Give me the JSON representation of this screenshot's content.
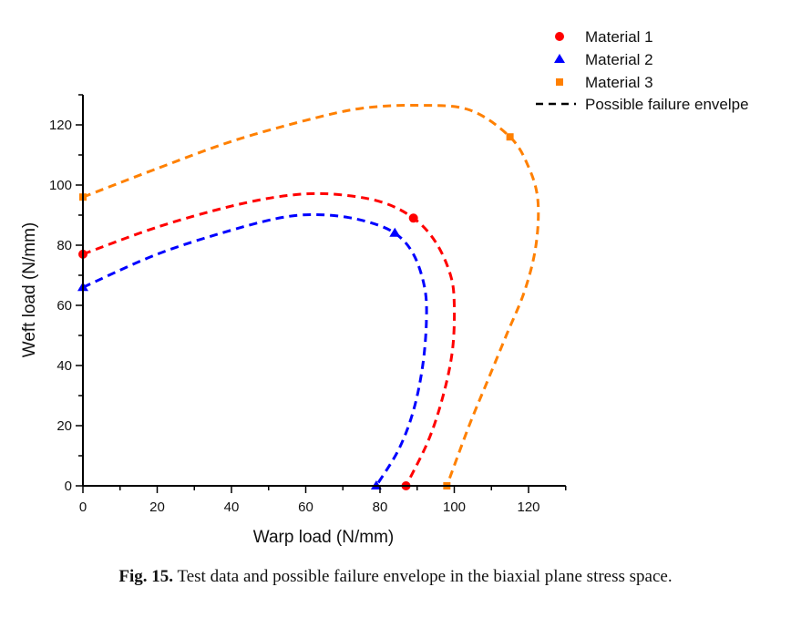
{
  "chart_data": {
    "type": "scatter",
    "xlabel": "Warp load (N/mm)",
    "ylabel": "Weft load (N/mm)",
    "xlim": [
      0,
      130
    ],
    "ylim": [
      0,
      130
    ],
    "xticks": [
      0,
      20,
      40,
      60,
      80,
      100,
      120
    ],
    "yticks": [
      0,
      20,
      40,
      60,
      80,
      100,
      120
    ],
    "grid": false,
    "legend_position": "top-right",
    "series": [
      {
        "name": "Material 1",
        "marker": "circle",
        "color": "#ff0000",
        "points": [
          [
            0,
            77
          ],
          [
            89,
            89
          ],
          [
            87,
            0
          ]
        ]
      },
      {
        "name": "Material 2",
        "marker": "triangle",
        "color": "#0000ff",
        "points": [
          [
            0,
            66
          ],
          [
            84,
            84
          ],
          [
            79,
            0
          ]
        ]
      },
      {
        "name": "Material 3",
        "marker": "square",
        "color": "#ff8000",
        "points": [
          [
            0,
            96
          ],
          [
            115,
            116
          ],
          [
            98,
            0
          ]
        ]
      }
    ],
    "envelopes": {
      "name": "Possible failure envelpe",
      "style": "dashed",
      "curves": [
        {
          "color": "#ff0000",
          "points": [
            [
              0,
              77
            ],
            [
              20,
              86
            ],
            [
              40,
              93
            ],
            [
              55,
              96.5
            ],
            [
              67,
              97
            ],
            [
              80,
              94.5
            ],
            [
              89,
              89
            ],
            [
              95,
              81
            ],
            [
              99,
              70
            ],
            [
              100,
              60
            ],
            [
              99.5,
              45
            ],
            [
              97,
              30
            ],
            [
              93,
              15
            ],
            [
              87,
              0
            ]
          ]
        },
        {
          "color": "#0000ff",
          "points": [
            [
              0,
              66
            ],
            [
              20,
              77
            ],
            [
              40,
              85
            ],
            [
              55,
              89.5
            ],
            [
              66,
              90
            ],
            [
              76,
              88
            ],
            [
              84,
              84
            ],
            [
              89,
              77
            ],
            [
              92,
              66
            ],
            [
              92.5,
              55
            ],
            [
              91.5,
              40
            ],
            [
              89,
              25
            ],
            [
              85,
              12
            ],
            [
              79,
              0
            ]
          ]
        },
        {
          "color": "#ff8000",
          "points": [
            [
              0,
              96
            ],
            [
              20,
              105.5
            ],
            [
              40,
              114.5
            ],
            [
              60,
              121.5
            ],
            [
              75,
              125.5
            ],
            [
              90,
              126.5
            ],
            [
              104,
              125
            ],
            [
              115,
              116
            ],
            [
              120,
              106
            ],
            [
              122.5,
              95
            ],
            [
              122,
              80
            ],
            [
              119,
              65
            ],
            [
              114,
              50
            ],
            [
              109,
              35
            ],
            [
              104,
              20
            ],
            [
              98,
              0
            ]
          ]
        }
      ]
    }
  },
  "caption": {
    "label": "Fig. 15.",
    "text": " Test data and possible failure envelope in the biaxial plane stress space."
  }
}
